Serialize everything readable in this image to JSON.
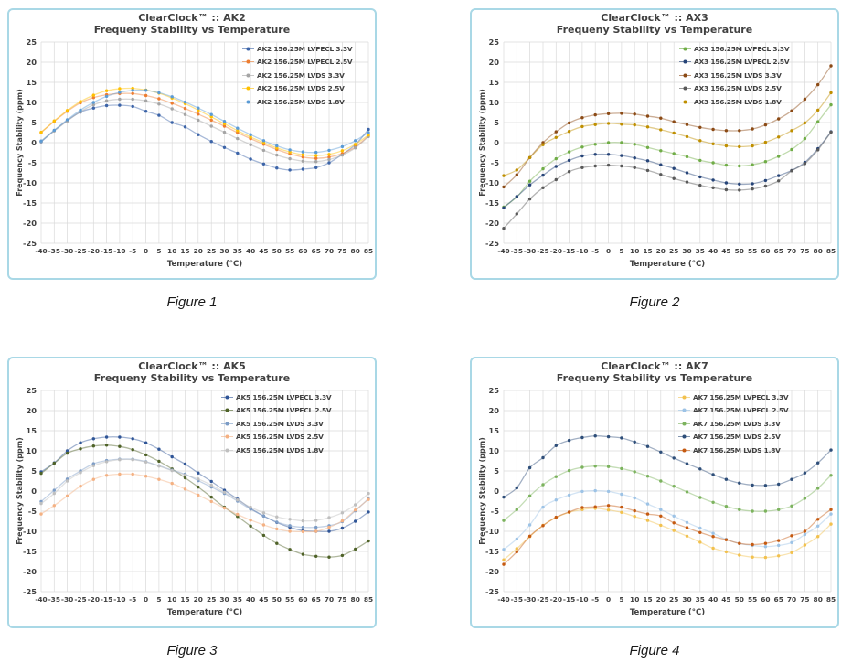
{
  "style": {
    "card_border_color": "#a9d8e6",
    "text_color": "#404040",
    "grid_color": "#dadada",
    "background": "#ffffff",
    "caption_color": "#1a1a1a"
  },
  "chart_data": [
    {
      "type": "line",
      "title": "ClearClock™ :: AK2",
      "subtitle": "Frequeny Stability vs Temperature",
      "caption": "Figure 1",
      "xlabel": "Temperature (°C)",
      "ylabel": "Frequency Stability (ppm)",
      "ylim": [
        -25,
        25
      ],
      "y_step": 5,
      "grid": true,
      "legend_position": "top-right",
      "x": [
        -40,
        -35,
        -30,
        -25,
        -20,
        -15,
        -10,
        -5,
        0,
        5,
        10,
        15,
        20,
        25,
        30,
        35,
        40,
        45,
        50,
        55,
        60,
        65,
        70,
        75,
        80,
        85
      ],
      "series": [
        {
          "name": "AK2 156.25M LVPECL 3.3V",
          "color": "#3c64a8",
          "values": [
            0.2,
            3.0,
            5.5,
            7.6,
            8.6,
            9.2,
            9.3,
            9.0,
            7.8,
            6.8,
            5.0,
            3.9,
            2.0,
            0.3,
            -1.2,
            -2.6,
            -4.1,
            -5.3,
            -6.3,
            -6.8,
            -6.6,
            -6.2,
            -5.0,
            -2.9,
            -0.5,
            3.3
          ]
        },
        {
          "name": "AK2 156.25M LVPECL 2.5V",
          "color": "#ed7d31",
          "values": [
            2.5,
            5.3,
            7.8,
            9.9,
            11.2,
            11.9,
            12.2,
            12.2,
            11.7,
            10.9,
            9.8,
            8.5,
            7.1,
            5.6,
            4.1,
            2.5,
            1.0,
            -0.4,
            -1.7,
            -2.8,
            -3.6,
            -3.9,
            -3.6,
            -2.7,
            -1.1,
            1.7
          ]
        },
        {
          "name": "AK2 156.25M LVDS 3.3V",
          "color": "#a5a5a5",
          "values": [
            0.3,
            2.9,
            5.4,
            7.7,
            9.4,
            10.4,
            10.8,
            10.8,
            10.4,
            9.6,
            8.4,
            7.0,
            5.6,
            4.1,
            2.6,
            1.0,
            -0.5,
            -1.9,
            -3.1,
            -4.0,
            -4.6,
            -4.7,
            -4.2,
            -3.1,
            -1.3,
            1.5
          ]
        },
        {
          "name": "AK2 156.25M LVDS 2.5V",
          "color": "#ffc000",
          "values": [
            2.6,
            5.4,
            8.0,
            10.2,
            11.8,
            12.9,
            13.4,
            13.5,
            13.1,
            12.3,
            11.1,
            9.7,
            8.1,
            6.4,
            4.7,
            3.0,
            1.4,
            0.0,
            -1.3,
            -2.3,
            -3.0,
            -3.2,
            -2.9,
            -2.0,
            -0.4,
            1.9
          ]
        },
        {
          "name": "AK2 156.25M LVDS 1.8V",
          "color": "#5b9bd5",
          "values": [
            0.4,
            3.1,
            5.7,
            8.1,
            10.0,
            11.5,
            12.5,
            13.0,
            13.0,
            12.4,
            11.4,
            10.1,
            8.6,
            7.0,
            5.3,
            3.6,
            2.0,
            0.5,
            -0.8,
            -1.8,
            -2.3,
            -2.4,
            -1.9,
            -1.0,
            0.5,
            2.5
          ]
        }
      ]
    },
    {
      "type": "line",
      "title": "ClearClock™ :: AX3",
      "subtitle": "Frequeny Stability vs Temperature",
      "caption": "Figure 2",
      "xlabel": "Temperature (°C)",
      "ylabel": "Frequency Stability (ppm)",
      "ylim": [
        -25,
        25
      ],
      "y_step": 5,
      "grid": true,
      "legend_position": "top-right",
      "x": [
        -40,
        -35,
        -30,
        -25,
        -20,
        -15,
        -10,
        -5,
        0,
        5,
        10,
        15,
        20,
        25,
        30,
        35,
        40,
        45,
        50,
        55,
        60,
        65,
        70,
        75,
        80,
        85
      ],
      "series": [
        {
          "name": "AX3 156.25M LVPECL 3.3V",
          "color": "#70ad47",
          "values": [
            -16.0,
            -13.5,
            -9.6,
            -6.5,
            -4.0,
            -2.3,
            -1.1,
            -0.4,
            0.0,
            0.0,
            -0.4,
            -1.2,
            -2.0,
            -2.7,
            -3.5,
            -4.4,
            -5.0,
            -5.6,
            -5.8,
            -5.5,
            -4.7,
            -3.4,
            -1.7,
            1.0,
            5.2,
            9.4
          ]
        },
        {
          "name": "AX3 156.25M LVPECL 2.5V",
          "color": "#264478",
          "values": [
            -16.2,
            -13.4,
            -10.5,
            -8.1,
            -5.9,
            -4.4,
            -3.3,
            -2.9,
            -2.9,
            -3.2,
            -3.8,
            -4.5,
            -5.5,
            -6.4,
            -7.5,
            -8.5,
            -9.3,
            -10.0,
            -10.3,
            -10.2,
            -9.4,
            -8.2,
            -6.9,
            -4.9,
            -1.5,
            2.7
          ]
        },
        {
          "name": "AX3 156.25M LVDS 3.3V",
          "color": "#8b4a15",
          "values": [
            -11.0,
            -8.0,
            -3.7,
            0.0,
            2.7,
            4.9,
            6.2,
            6.9,
            7.2,
            7.3,
            7.1,
            6.6,
            6.1,
            5.2,
            4.5,
            3.8,
            3.3,
            3.0,
            3.0,
            3.4,
            4.4,
            5.9,
            7.9,
            10.8,
            14.4,
            19.1
          ]
        },
        {
          "name": "AX3 156.25M LVDS 2.5V",
          "color": "#595959",
          "values": [
            -21.3,
            -17.7,
            -14.0,
            -11.2,
            -9.2,
            -7.2,
            -6.2,
            -5.8,
            -5.6,
            -5.8,
            -6.2,
            -6.9,
            -7.9,
            -8.9,
            -9.8,
            -10.6,
            -11.2,
            -11.7,
            -11.8,
            -11.5,
            -10.8,
            -9.5,
            -7.0,
            -5.2,
            -1.8,
            2.6
          ]
        },
        {
          "name": "AX3 156.25M LVDS 1.8V",
          "color": "#bf8f00",
          "values": [
            -8.2,
            -6.8,
            -3.7,
            -0.5,
            1.3,
            2.8,
            4.0,
            4.5,
            4.8,
            4.6,
            4.4,
            3.9,
            3.2,
            2.4,
            1.5,
            0.5,
            -0.3,
            -0.8,
            -1.0,
            -0.8,
            0.1,
            1.4,
            3.0,
            4.9,
            8.1,
            12.4
          ]
        }
      ]
    },
    {
      "type": "line",
      "title": "ClearClock™ :: AK5",
      "subtitle": "Frequeny Stability vs Temperature",
      "caption": "Figure 3",
      "xlabel": "Temperature (°C)",
      "ylabel": "Frequency Stability (ppm)",
      "ylim": [
        -25,
        25
      ],
      "y_step": 5,
      "grid": true,
      "legend_position": "top-right",
      "x": [
        -40,
        -35,
        -30,
        -25,
        -20,
        -15,
        -10,
        -5,
        0,
        5,
        10,
        15,
        20,
        25,
        30,
        35,
        40,
        45,
        50,
        55,
        60,
        65,
        70,
        75,
        80,
        85
      ],
      "series": [
        {
          "name": "AK5 156.25M LVPECL 3.3V",
          "color": "#2f5597",
          "values": [
            4.8,
            7.0,
            10.0,
            12.0,
            13.0,
            13.4,
            13.4,
            13.0,
            12.0,
            10.4,
            8.5,
            6.7,
            4.5,
            2.4,
            0.2,
            -2.0,
            -4.3,
            -6.2,
            -7.8,
            -9.0,
            -9.8,
            -10.0,
            -10.0,
            -9.2,
            -7.5,
            -5.2
          ]
        },
        {
          "name": "AK5 156.25M LVPECL 2.5V",
          "color": "#4f6228",
          "values": [
            4.4,
            6.9,
            9.4,
            10.5,
            11.2,
            11.4,
            11.1,
            10.3,
            9.0,
            7.4,
            5.5,
            3.3,
            1.0,
            -1.5,
            -4.0,
            -6.3,
            -8.7,
            -11.0,
            -13.0,
            -14.5,
            -15.7,
            -16.2,
            -16.4,
            -16.0,
            -14.4,
            -12.4
          ]
        },
        {
          "name": "AK5 156.25M LVDS 3.3V",
          "color": "#7c9cc6",
          "values": [
            -2.6,
            0.2,
            3.0,
            5.0,
            6.8,
            7.6,
            7.9,
            7.9,
            7.3,
            6.3,
            5.2,
            4.2,
            2.6,
            1.0,
            -0.6,
            -2.5,
            -4.5,
            -6.2,
            -7.7,
            -8.6,
            -9.0,
            -9.0,
            -8.6,
            -7.6,
            -4.9,
            -1.9
          ]
        },
        {
          "name": "AK5 156.25M LVDS 2.5V",
          "color": "#f4b183",
          "values": [
            -5.7,
            -3.6,
            -1.2,
            1.2,
            2.9,
            3.9,
            4.2,
            4.2,
            3.7,
            2.9,
            1.9,
            0.5,
            -1.0,
            -2.6,
            -4.2,
            -5.8,
            -7.2,
            -8.4,
            -9.4,
            -10.0,
            -10.1,
            -10.0,
            -9.0,
            -7.4,
            -4.7,
            -2.1
          ]
        },
        {
          "name": "AK5 156.25M LVDS 1.8V",
          "color": "#bfbfbf",
          "values": [
            -3.1,
            -0.6,
            2.5,
            4.6,
            6.3,
            7.3,
            7.8,
            7.8,
            7.2,
            6.2,
            5.1,
            4.0,
            3.0,
            1.5,
            -0.3,
            -2.2,
            -4.0,
            -5.4,
            -6.4,
            -7.0,
            -7.4,
            -7.3,
            -6.6,
            -5.4,
            -3.4,
            -0.6
          ]
        }
      ]
    },
    {
      "type": "line",
      "title": "ClearClock™ :: AK7",
      "subtitle": "Frequeny Stability vs Temperature",
      "caption": "Figure 4",
      "xlabel": "Temperature (°C)",
      "ylabel": "Frequency Stability (ppm)",
      "ylim": [
        -25,
        25
      ],
      "y_step": 5,
      "grid": true,
      "legend_position": "top-right",
      "x": [
        -40,
        -35,
        -30,
        -25,
        -20,
        -15,
        -10,
        -5,
        0,
        5,
        10,
        15,
        20,
        25,
        30,
        35,
        40,
        45,
        50,
        55,
        60,
        65,
        70,
        75,
        80,
        85
      ],
      "series": [
        {
          "name": "AK7 156.25M LVPECL 3.3V",
          "color": "#f2c14e",
          "values": [
            -17.1,
            -14.3,
            -11.3,
            -8.5,
            -6.6,
            -5.3,
            -4.6,
            -4.3,
            -4.7,
            -5.3,
            -6.3,
            -7.3,
            -8.5,
            -9.8,
            -11.2,
            -12.7,
            -14.2,
            -15.1,
            -15.9,
            -16.4,
            -16.5,
            -16.1,
            -15.3,
            -13.4,
            -11.3,
            -8.2
          ]
        },
        {
          "name": "AK7 156.25M LVPECL 2.5V",
          "color": "#9dc3e6",
          "values": [
            -14.5,
            -11.9,
            -8.4,
            -4.0,
            -2.2,
            -1.0,
            -0.1,
            0.1,
            -0.1,
            -0.8,
            -1.7,
            -3.2,
            -4.6,
            -6.2,
            -7.8,
            -9.2,
            -10.5,
            -12.0,
            -13.0,
            -13.5,
            -13.8,
            -13.5,
            -12.8,
            -10.8,
            -8.7,
            -5.7
          ]
        },
        {
          "name": "AK7 156.25M LVDS 3.3V",
          "color": "#7cb35e",
          "values": [
            -7.3,
            -4.6,
            -1.2,
            1.6,
            3.6,
            5.1,
            5.9,
            6.2,
            6.1,
            5.6,
            4.8,
            3.7,
            2.5,
            1.2,
            -0.2,
            -1.6,
            -2.8,
            -3.8,
            -4.6,
            -5.0,
            -5.0,
            -4.6,
            -3.7,
            -1.8,
            0.7,
            3.9
          ]
        },
        {
          "name": "AK7 156.25M LVDS 2.5V",
          "color": "#2e4e79",
          "values": [
            -1.5,
            0.8,
            5.8,
            8.3,
            11.3,
            12.6,
            13.3,
            13.7,
            13.5,
            13.2,
            12.2,
            11.1,
            9.7,
            8.2,
            6.8,
            5.5,
            4.1,
            2.9,
            2.0,
            1.5,
            1.4,
            1.7,
            2.9,
            4.5,
            7.0,
            10.2
          ]
        },
        {
          "name": "AK7 156.25M LVDS 1.8V",
          "color": "#c55a11",
          "values": [
            -18.2,
            -15.1,
            -11.2,
            -8.6,
            -6.5,
            -5.2,
            -4.1,
            -3.9,
            -3.6,
            -4.0,
            -4.9,
            -5.7,
            -6.2,
            -7.9,
            -9.1,
            -10.3,
            -11.3,
            -12.1,
            -13.0,
            -13.3,
            -13.0,
            -12.3,
            -11.1,
            -10.0,
            -7.0,
            -4.6
          ]
        }
      ]
    }
  ]
}
